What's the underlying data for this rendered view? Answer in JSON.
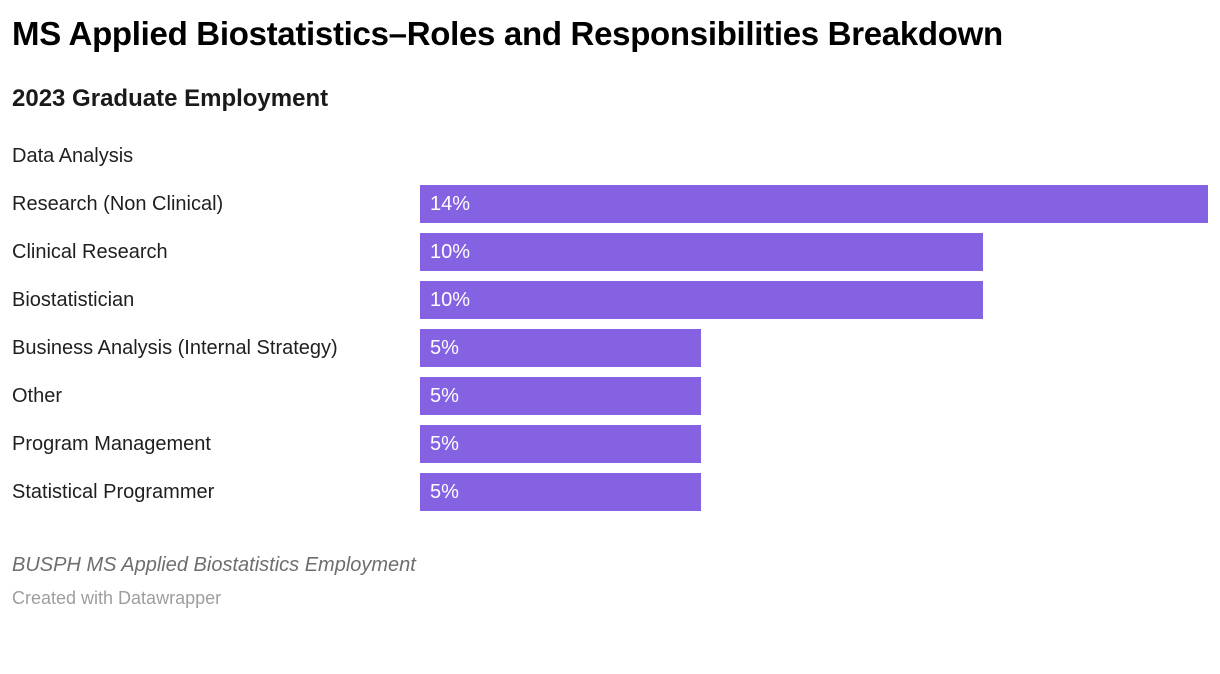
{
  "header": {
    "title": "MS Applied Biostatistics–Roles and Responsibilities Breakdown",
    "subtitle": "2023 Graduate Employment"
  },
  "chart_data": {
    "type": "bar",
    "orientation": "horizontal",
    "title": "MS Applied Biostatistics–Roles and Responsibilities Breakdown",
    "subtitle": "2023 Graduate Employment",
    "categories": [
      "Data Analysis",
      "Research (Non Clinical)",
      "Clinical Research",
      "Biostatistician",
      "Business Analysis (Internal Strategy)",
      "Other",
      "Program Management",
      "Statistical Programmer"
    ],
    "values": [
      null,
      14,
      10,
      10,
      5,
      5,
      5,
      5
    ],
    "value_labels": [
      "",
      "14%",
      "10%",
      "10%",
      "5%",
      "5%",
      "5%",
      "5%"
    ],
    "xlim": [
      0,
      14
    ],
    "grid": false,
    "legend": "none",
    "value_label_position": "inside-left",
    "bar_color": "#8562e1"
  },
  "footer": {
    "byline": "BUSPH MS Applied Biostatistics Employment",
    "attribution": "Created with Datawrapper"
  },
  "colors": {
    "background": "#ffffff",
    "bar": "#8562e1",
    "title": "#000000",
    "category_label": "#1f1f1f",
    "value_label": "#ffffff",
    "byline": "#6e6e6e",
    "attribution": "#9e9e9e"
  }
}
